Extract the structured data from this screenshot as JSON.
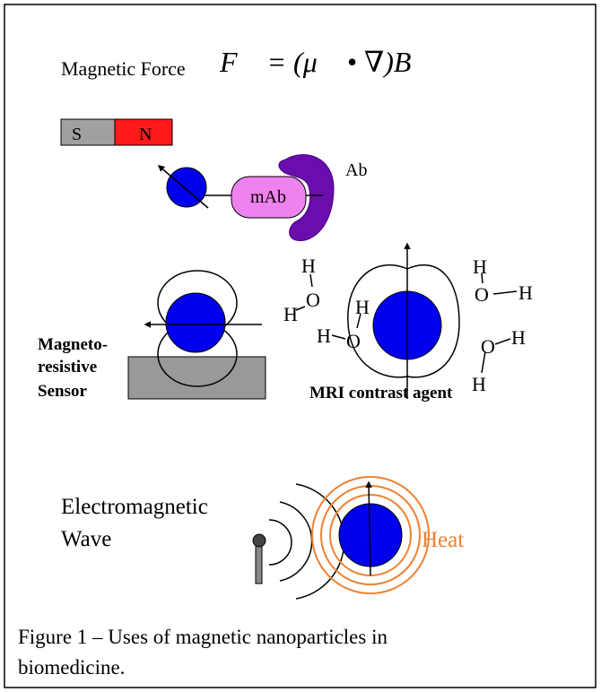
{
  "formula_label": "Magnetic Force",
  "formula": "F⃗ = (μ⃗ • ∇)B⃗",
  "magnet": {
    "south": "S",
    "north": "N"
  },
  "antibody": {
    "conjugate": "mAb",
    "target": "Ab"
  },
  "sensor_label": [
    "Magneto-",
    "resistive",
    "Sensor"
  ],
  "mri_label": "MRI contrast agent",
  "atoms": [
    "H",
    "O",
    "H",
    "H",
    "O",
    "H",
    "H",
    "O",
    "H",
    "O",
    "H",
    "H"
  ],
  "wave_label": [
    "Electromagnetic",
    "Wave"
  ],
  "heat_label": "Heat",
  "caption": [
    "Figure 1 – Uses of magnetic nanoparticles in",
    "biomedicine."
  ]
}
